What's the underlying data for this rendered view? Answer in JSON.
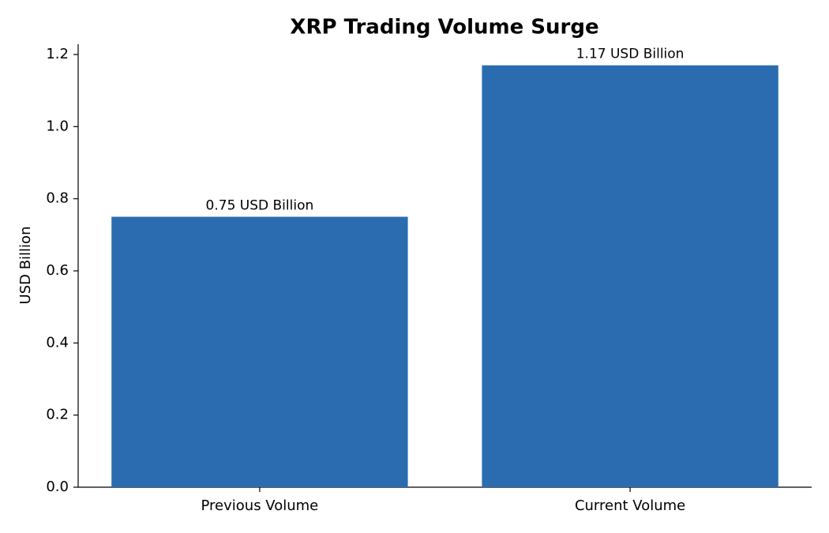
{
  "chart_data": {
    "type": "bar",
    "title": "XRP Trading Volume Surge",
    "y_label": "USD Billion",
    "categories": [
      "Previous Volume",
      "Current Volume"
    ],
    "values": [
      0.75,
      1.17
    ],
    "value_labels": [
      "0.75 USD Billion",
      "1.17 USD Billion"
    ],
    "color": "#2b6cb0",
    "ylim": [
      0,
      1.2285
    ],
    "yticks": [
      {
        "value": 0,
        "label": "0.0"
      },
      {
        "value": 0.2,
        "label": "0.2"
      },
      {
        "value": 0.4,
        "label": "0.4"
      },
      {
        "value": 0.6,
        "label": "0.6"
      },
      {
        "value": 0.8,
        "label": "0.8"
      },
      {
        "value": 1.0,
        "label": "1.0"
      },
      {
        "value": 1.2,
        "label": "1.2"
      }
    ],
    "grid": false
  }
}
